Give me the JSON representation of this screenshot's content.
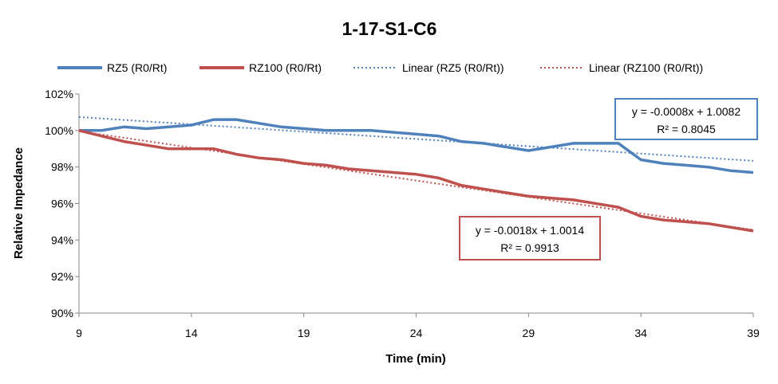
{
  "chart_data": {
    "type": "line",
    "title": "1-17-S1-C6",
    "xlabel": "Time (min)",
    "ylabel": "Relative Impedance",
    "xlim": [
      9,
      39
    ],
    "ylim": [
      0.9,
      1.02
    ],
    "x_ticks": [
      "9",
      "14",
      "19",
      "24",
      "29",
      "34",
      "39"
    ],
    "y_ticks": [
      "90%",
      "92%",
      "94%",
      "96%",
      "98%",
      "100%",
      "102%"
    ],
    "grid": false,
    "legend_position": "top",
    "series": [
      {
        "name": "RZ5 (R0/Rt)",
        "color": "#4f81bd",
        "style": "solid",
        "x": [
          9,
          10,
          11,
          12,
          13,
          14,
          15,
          16,
          17,
          18,
          19,
          20,
          21,
          22,
          23,
          24,
          25,
          26,
          27,
          28,
          29,
          30,
          31,
          32,
          33,
          34,
          35,
          36,
          37,
          38,
          39
        ],
        "y": [
          1.0,
          1.0,
          1.002,
          1.001,
          1.002,
          1.003,
          1.006,
          1.006,
          1.004,
          1.002,
          1.001,
          1.0,
          1.0,
          1.0,
          0.999,
          0.998,
          0.997,
          0.994,
          0.993,
          0.991,
          0.989,
          0.991,
          0.993,
          0.993,
          0.993,
          0.984,
          0.982,
          0.981,
          0.98,
          0.978,
          0.977
        ]
      },
      {
        "name": "RZ100 (R0/Rt)",
        "color": "#c0504d",
        "style": "solid",
        "x": [
          9,
          10,
          11,
          12,
          13,
          14,
          15,
          16,
          17,
          18,
          19,
          20,
          21,
          22,
          23,
          24,
          25,
          26,
          27,
          28,
          29,
          30,
          31,
          32,
          33,
          34,
          35,
          36,
          37,
          38,
          39
        ],
        "y": [
          1.0,
          0.997,
          0.994,
          0.992,
          0.99,
          0.99,
          0.99,
          0.987,
          0.985,
          0.984,
          0.982,
          0.981,
          0.979,
          0.978,
          0.977,
          0.976,
          0.974,
          0.97,
          0.968,
          0.966,
          0.964,
          0.963,
          0.962,
          0.96,
          0.958,
          0.953,
          0.951,
          0.95,
          0.949,
          0.947,
          0.945
        ]
      },
      {
        "name": "Linear (RZ5 (R0/Rt))",
        "color": "#4f81bd",
        "style": "dotted",
        "x": [
          9,
          39
        ],
        "y": [
          1.0074,
          0.9834
        ]
      },
      {
        "name": "Linear (RZ100 (R0/Rt))",
        "color": "#c0504d",
        "style": "dotted",
        "x": [
          9,
          39
        ],
        "y": [
          0.9996,
          0.9456
        ]
      }
    ],
    "annotations": [
      {
        "series": "RZ5 (R0/Rt)",
        "line1": "y = -0.0008x + 1.0082",
        "line2": "R² = 0.8045",
        "border_color": "#4f81bd"
      },
      {
        "series": "RZ100 (R0/Rt)",
        "line1": "y = -0.0018x + 1.0014",
        "line2": "R² = 0.9913",
        "border_color": "#c0504d"
      }
    ]
  }
}
